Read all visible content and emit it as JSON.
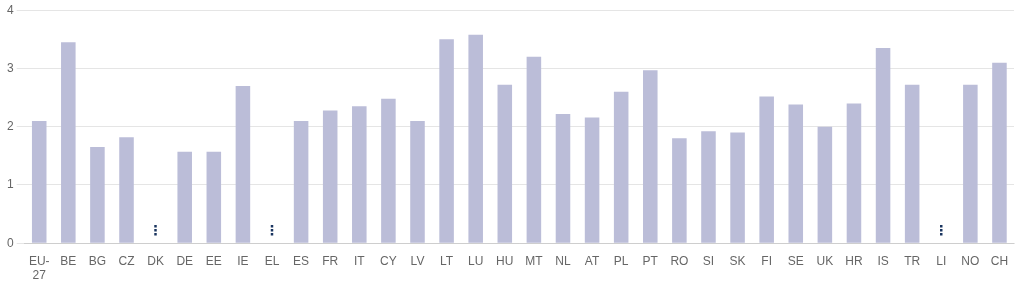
{
  "chart_data": {
    "type": "bar",
    "categories": [
      "EU-\n27",
      "BE",
      "BG",
      "CZ",
      "DK",
      "DE",
      "EE",
      "IE",
      "EL",
      "ES",
      "FR",
      "IT",
      "CY",
      "LV",
      "LT",
      "LU",
      "HU",
      "MT",
      "NL",
      "AT",
      "PL",
      "PT",
      "RO",
      "SI",
      "SK",
      "FI",
      "SE",
      "UK",
      "HR",
      "IS",
      "TR",
      "LI",
      "NO",
      "CH"
    ],
    "values": [
      2.1,
      3.45,
      1.65,
      1.82,
      null,
      1.57,
      1.57,
      2.7,
      null,
      2.1,
      2.28,
      2.35,
      2.48,
      2.1,
      3.5,
      3.58,
      2.72,
      3.2,
      2.22,
      2.16,
      2.6,
      2.97,
      1.8,
      1.92,
      1.9,
      2.52,
      2.38,
      2.0,
      2.4,
      3.35,
      2.72,
      null,
      2.72,
      3.1
    ],
    "color": "#bbbdd8",
    "ylim": [
      0,
      4
    ],
    "yticks": [
      0,
      1,
      2,
      3,
      4
    ],
    "grid": true,
    "annotations": [
      {
        "text": "⋮",
        "x": "DK",
        "y": 0.08,
        "color": "#1a3560"
      },
      {
        "text": "⋮",
        "x": "EL",
        "y": 0.08,
        "color": "#1a3560"
      },
      {
        "text": "⋮",
        "x": "LI",
        "y": 0.08,
        "color": "#1a3560"
      }
    ]
  }
}
